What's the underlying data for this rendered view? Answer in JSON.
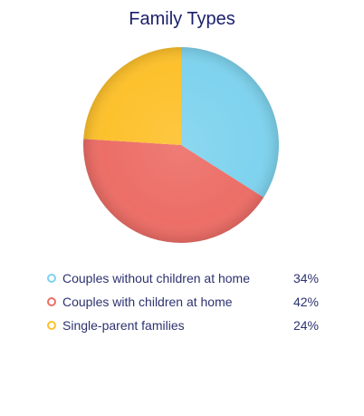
{
  "chart_data": {
    "type": "pie",
    "title": "Family Types",
    "categories": [
      "Couples without children at home",
      "Couples with children at home",
      "Single-parent families"
    ],
    "values": [
      34,
      42,
      24
    ],
    "value_labels": [
      "34%",
      "42%",
      "24%"
    ],
    "colors": [
      "#7fd3ee",
      "#ec6e67",
      "#fdc12d"
    ],
    "legend_position": "bottom"
  }
}
